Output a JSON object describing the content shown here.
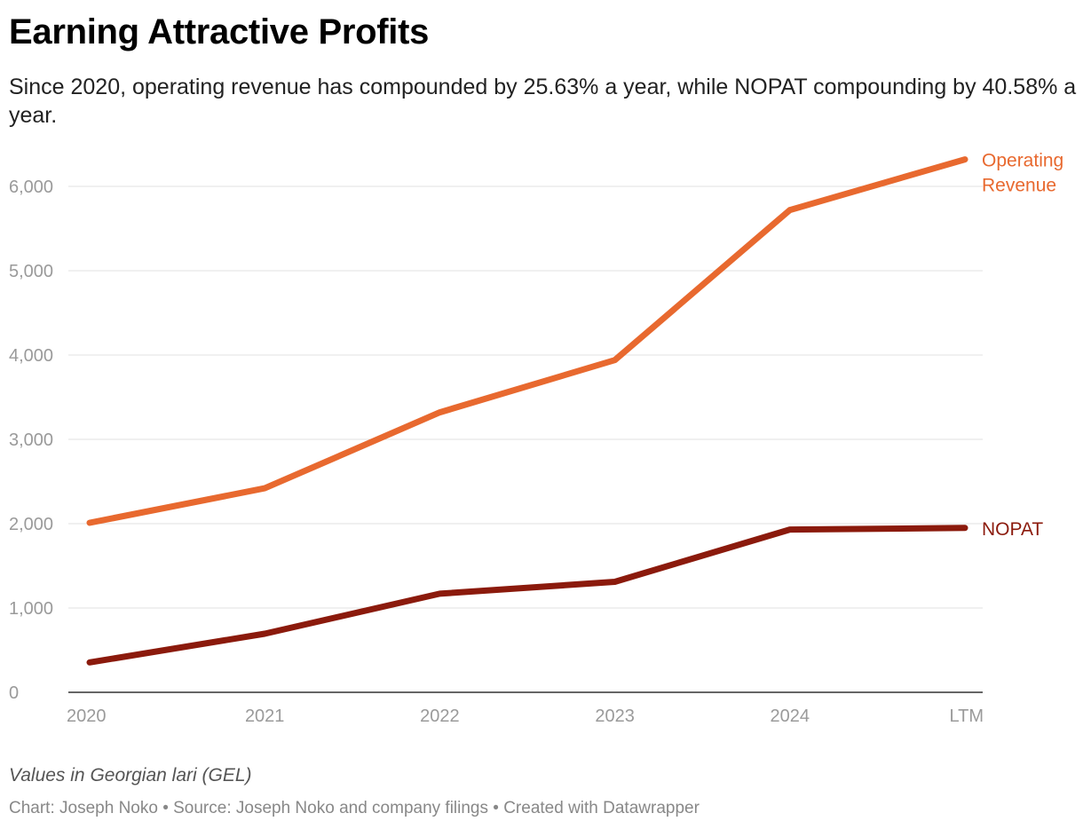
{
  "chart_data": {
    "type": "line",
    "title": "Earning Attractive Profits",
    "subtitle": "Since 2020, operating revenue has compounded by 25.63% a year, while NOPAT compounding by 40.58% a year.",
    "categories": [
      "2020",
      "2021",
      "2022",
      "2023",
      "2024",
      "LTM"
    ],
    "series": [
      {
        "name": "Operating Revenue",
        "label_lines": [
          "Operating",
          "Revenue"
        ],
        "values": [
          2010,
          2420,
          3320,
          3940,
          5720,
          6320
        ],
        "color": "#e8692f"
      },
      {
        "name": "NOPAT",
        "label_lines": [
          "NOPAT"
        ],
        "values": [
          355,
          695,
          1170,
          1310,
          1930,
          1950
        ],
        "color": "#8b1a0c"
      }
    ],
    "ylim": [
      0,
      6000
    ],
    "y_ticks": [
      "0",
      "1,000",
      "2,000",
      "3,000",
      "4,000",
      "5,000",
      "6,000"
    ],
    "y_tick_values": [
      0,
      1000,
      2000,
      3000,
      4000,
      5000,
      6000
    ],
    "grid": true,
    "notes": "Values in Georgian lari (GEL)",
    "footer": "Chart: Joseph Noko • Source: Joseph Noko and company filings • Created with Datawrapper"
  }
}
